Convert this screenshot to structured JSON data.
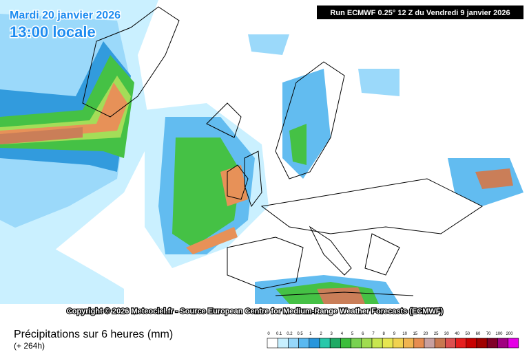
{
  "header": {
    "date": "Mardi 20 janvier 2026",
    "time": "13:00 locale",
    "run": "Run ECMWF 0.25° 12 Z du Vendredi 9 janvier 2026"
  },
  "copyright": "Copyright © 2026 Meteociel.fr - Source European Centre for Medium-Range Weather Forecasts (ECMWF)",
  "footer": {
    "title": "Précipitations sur 6 heures (mm)",
    "lead": "(+ 264h)"
  },
  "legend": {
    "items": [
      {
        "value": 0,
        "color": "#ffffff"
      },
      {
        "value": 0.1,
        "color": "#c8f0ff"
      },
      {
        "value": 0.2,
        "color": "#96d7fa"
      },
      {
        "value": 0.5,
        "color": "#5ab9f0"
      },
      {
        "value": 1,
        "color": "#2896dc"
      },
      {
        "value": 2,
        "color": "#28c8aa"
      },
      {
        "value": 3,
        "color": "#1eaa64"
      },
      {
        "value": 4,
        "color": "#3cbe3c"
      },
      {
        "value": 5,
        "color": "#78d250"
      },
      {
        "value": 6,
        "color": "#a0dc50"
      },
      {
        "value": 7,
        "color": "#c8e650"
      },
      {
        "value": 8,
        "color": "#e6e650"
      },
      {
        "value": 9,
        "color": "#f0d250"
      },
      {
        "value": 10,
        "color": "#f0b450"
      },
      {
        "value": 15,
        "color": "#e68c50"
      },
      {
        "value": 20,
        "color": "#c8a0a0"
      },
      {
        "value": 25,
        "color": "#c87850"
      },
      {
        "value": 30,
        "color": "#dc5050"
      },
      {
        "value": 40,
        "color": "#e61e1e"
      },
      {
        "value": 50,
        "color": "#c80000"
      },
      {
        "value": 60,
        "color": "#a00000"
      },
      {
        "value": 70,
        "color": "#800028"
      },
      {
        "value": 100,
        "color": "#a00080"
      },
      {
        "value": 200,
        "color": "#e600e6"
      }
    ]
  }
}
